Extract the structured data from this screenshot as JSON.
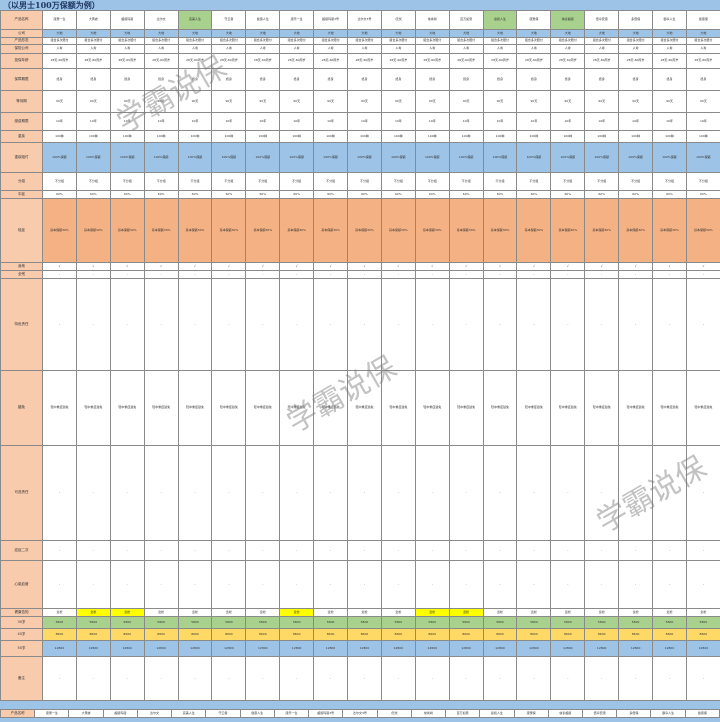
{
  "title": "（以男士100万保额为例）",
  "watermark": "学霸说保",
  "columns": 20,
  "rows": [
    {
      "label": "产品名称",
      "h": 19,
      "style": "",
      "cells": [
        "康惠一生",
        "大黄蜂",
        "超级玛丽",
        "达尔文",
        "完美人生",
        "守卫者",
        "健康人生",
        "康乐一生",
        "超级玛丽3号",
        "达尔文3号",
        "i无忧",
        "常青树",
        "百万如意",
        "嘉和人生",
        "康惠保",
        "信泰超级",
        "倍享安康",
        "多倍保",
        "御享人生",
        "健康保"
      ],
      "hl": {
        "4": "g",
        "13": "g",
        "15": "g"
      }
    },
    {
      "label": "公司",
      "h": 8,
      "style": "blue",
      "fill": "大地"
    },
    {
      "label": "产品形态",
      "h": 7,
      "style": "",
      "fill": "组合多次赔付"
    },
    {
      "label": "保险公司",
      "h": 9,
      "style": "",
      "fill": "人寿"
    },
    {
      "label": "投保年龄",
      "h": 15,
      "style": "",
      "fill": "28天-60周岁"
    },
    {
      "label": "保障期限",
      "h": 22,
      "style": "",
      "fill": "终身"
    },
    {
      "label": "等待期",
      "h": 22,
      "style": "",
      "fill": "90天"
    },
    {
      "label": "缴费期限",
      "h": 18,
      "style": "",
      "fill": "10年"
    },
    {
      "label": "重疾",
      "h": 12,
      "style": "",
      "fill": "100种"
    },
    {
      "label": "重疾赔付",
      "h": 30,
      "style": "blue",
      "fill": "100%保额"
    },
    {
      "label": "分组",
      "h": 18,
      "style": "",
      "fill": "不分组"
    },
    {
      "label": "中症",
      "h": 8,
      "style": "",
      "fill": "60%"
    },
    {
      "label": "轻症",
      "h": 64,
      "style": "orange",
      "fill": "基本保额30%"
    },
    {
      "label": "身故",
      "h": 8,
      "style": "",
      "fill": "√"
    },
    {
      "label": "全残",
      "h": 8,
      "style": "",
      "fill": "-"
    },
    {
      "label": "特色责任",
      "h": 92,
      "style": "",
      "fill": "-"
    },
    {
      "label": "豁免",
      "h": 75,
      "style": "",
      "fill": "轻中重症豁免"
    },
    {
      "label": "可选责任",
      "h": 95,
      "style": "",
      "fill": "-"
    },
    {
      "label": "癌症二次",
      "h": 20,
      "style": "",
      "fill": "-"
    },
    {
      "label": "心脑血管",
      "h": 48,
      "style": "",
      "fill": "-"
    },
    {
      "label": "健康告知",
      "h": 8,
      "style": "",
      "fill": "宽松",
      "hl": {
        "1": "y",
        "2": "y",
        "7": "y",
        "11": "y",
        "12": "y"
      }
    },
    {
      "label": "30岁",
      "h": 12,
      "style": "green",
      "fill": "5800"
    },
    {
      "label": "40岁",
      "h": 12,
      "style": "yellow",
      "fill": "8600"
    },
    {
      "label": "50岁",
      "h": 16,
      "style": "blue",
      "fill": "12800"
    },
    {
      "label": "备注",
      "h": 44,
      "style": "",
      "fill": "-"
    }
  ],
  "footer": {
    "label": "产品名称",
    "cells": [
      "康惠一生",
      "大黄蜂",
      "超级玛丽",
      "达尔文",
      "完美人生",
      "守卫者",
      "健康人生",
      "康乐一生",
      "超级玛丽3号",
      "达尔文3号",
      "i无忧",
      "常青树",
      "百万如意",
      "嘉和人生",
      "康惠保",
      "信泰超级",
      "倍享安康",
      "多倍保",
      "御享人生",
      "健康保"
    ]
  }
}
